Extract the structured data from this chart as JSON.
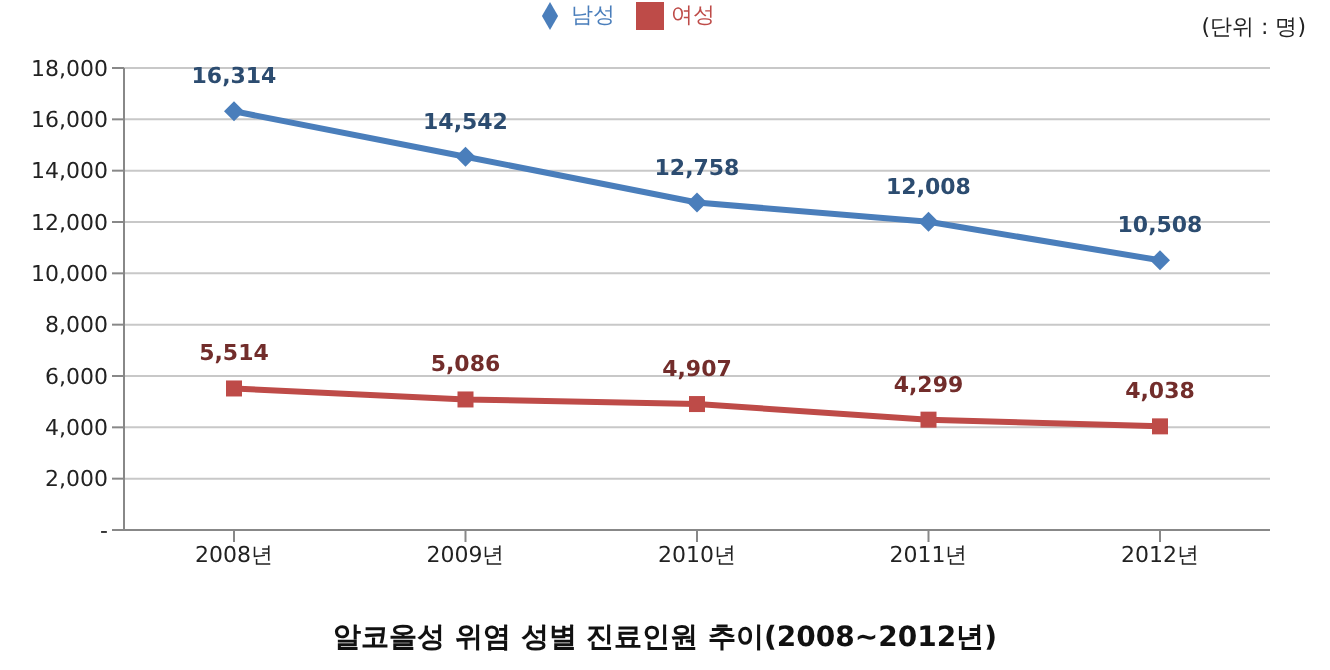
{
  "chart_data": {
    "type": "line",
    "title": "알코올성 위염 성별 진료인원 추이(2008~2012년)",
    "annotations": [
      "(단위 : 명)"
    ],
    "categories": [
      "2008년",
      "2009년",
      "2010년",
      "2011년",
      "2012년"
    ],
    "series": [
      {
        "name": "남성",
        "color": "#4a7ebb",
        "marker": "diamond",
        "values": [
          16314,
          14542,
          12758,
          12008,
          10508
        ],
        "value_labels": [
          "16,314",
          "14,542",
          "12,758",
          "12,008",
          "10,508"
        ]
      },
      {
        "name": "여성",
        "color": "#be4b48",
        "marker": "square",
        "values": [
          5514,
          5086,
          4907,
          4299,
          4038
        ],
        "value_labels": [
          "5,514",
          "5,086",
          "4,907",
          "4,299",
          "4,038"
        ]
      }
    ],
    "ylim": [
      0,
      18000
    ],
    "yticks": [
      {
        "value": 0,
        "label": "-"
      },
      {
        "value": 2000,
        "label": "2,000"
      },
      {
        "value": 4000,
        "label": "4,000"
      },
      {
        "value": 6000,
        "label": "6,000"
      },
      {
        "value": 8000,
        "label": "8,000"
      },
      {
        "value": 10000,
        "label": "10,000"
      },
      {
        "value": 12000,
        "label": "12,000"
      },
      {
        "value": 14000,
        "label": "14,000"
      },
      {
        "value": 16000,
        "label": "16,000"
      },
      {
        "value": 18000,
        "label": "18,000"
      }
    ],
    "grid": "y",
    "legend": "top",
    "line_style": "solid"
  }
}
